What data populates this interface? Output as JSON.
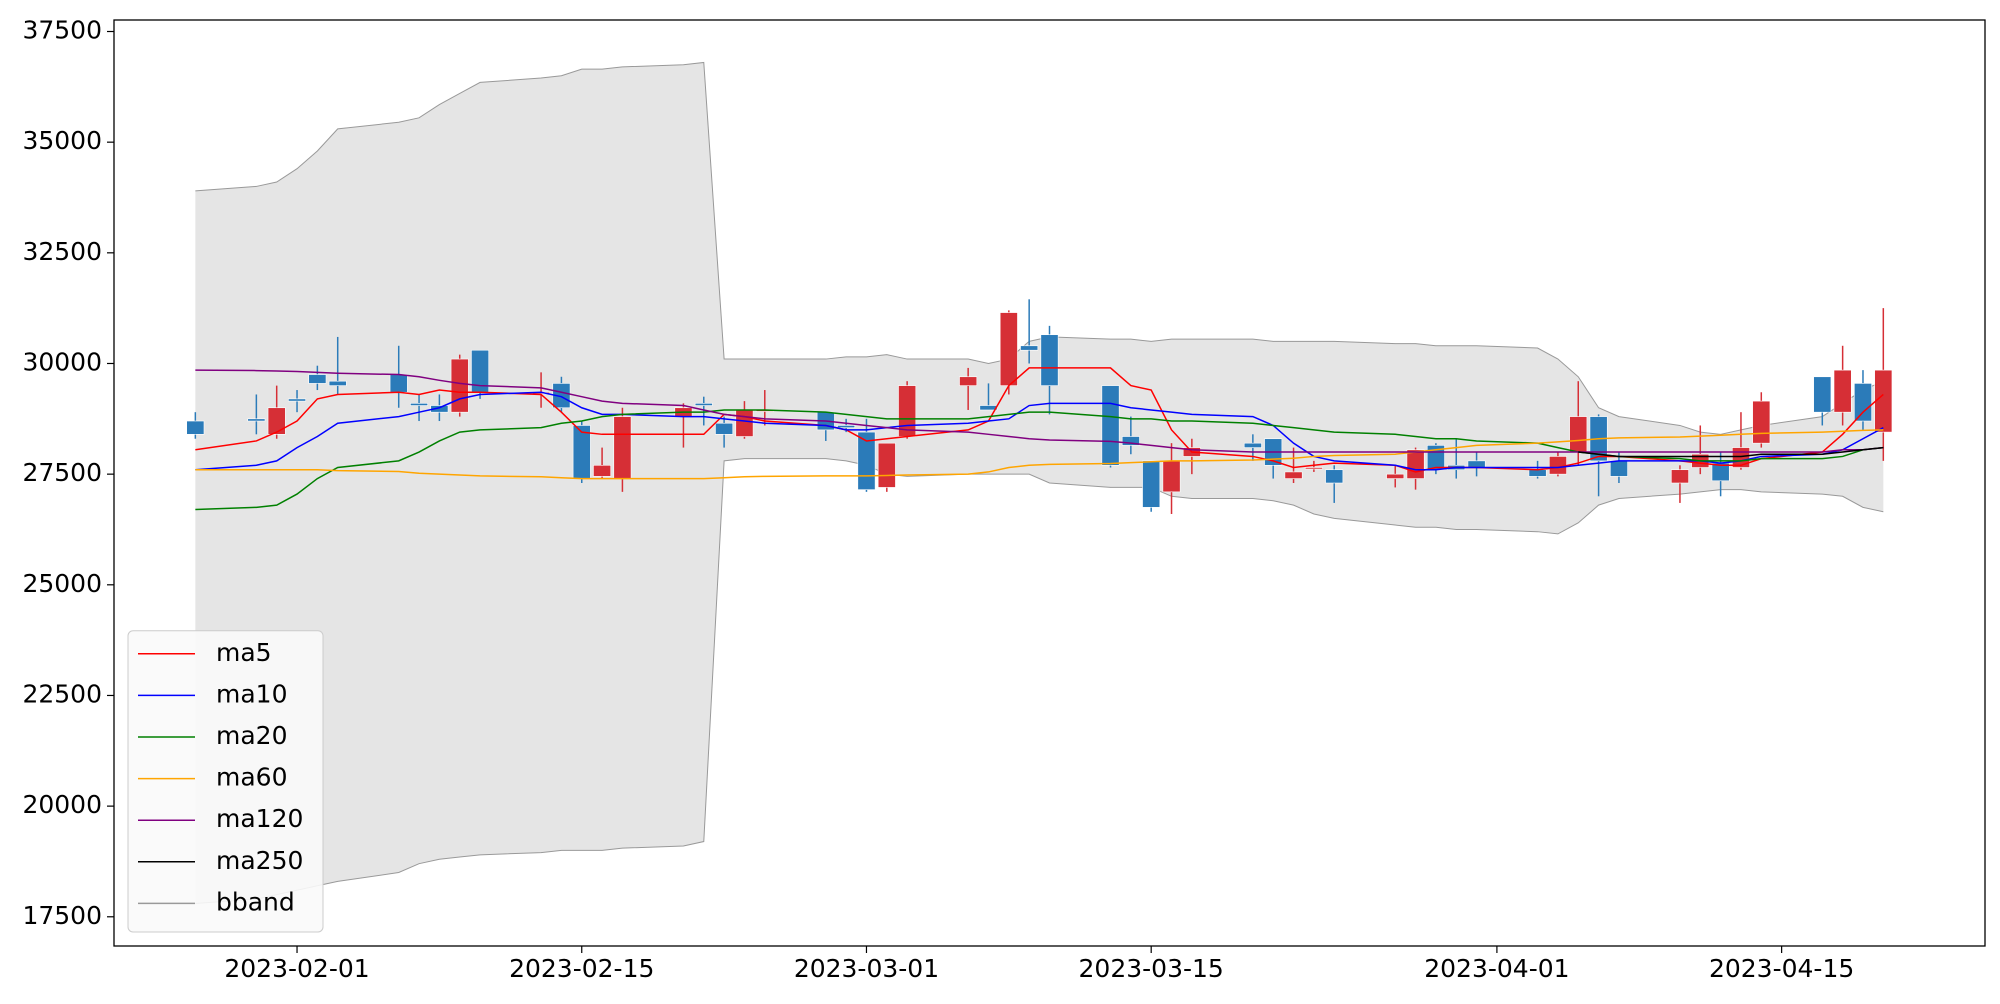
{
  "chart_data": {
    "type": "candlestick",
    "x": [
      "2023-01-27",
      "2023-01-30",
      "2023-01-31",
      "2023-02-01",
      "2023-02-02",
      "2023-02-03",
      "2023-02-06",
      "2023-02-07",
      "2023-02-08",
      "2023-02-09",
      "2023-02-10",
      "2023-02-13",
      "2023-02-14",
      "2023-02-15",
      "2023-02-16",
      "2023-02-17",
      "2023-02-20",
      "2023-02-21",
      "2023-02-22",
      "2023-02-23",
      "2023-02-24",
      "2023-02-27",
      "2023-02-28",
      "2023-03-01",
      "2023-03-02",
      "2023-03-03",
      "2023-03-06",
      "2023-03-07",
      "2023-03-08",
      "2023-03-09",
      "2023-03-10",
      "2023-03-13",
      "2023-03-14",
      "2023-03-15",
      "2023-03-16",
      "2023-03-17",
      "2023-03-20",
      "2023-03-21",
      "2023-03-22",
      "2023-03-23",
      "2023-03-24",
      "2023-03-27",
      "2023-03-28",
      "2023-03-29",
      "2023-03-30",
      "2023-03-31",
      "2023-04-03",
      "2023-04-04",
      "2023-04-05",
      "2023-04-06",
      "2023-04-07",
      "2023-04-10",
      "2023-04-11",
      "2023-04-12",
      "2023-04-13",
      "2023-04-14",
      "2023-04-17",
      "2023-04-18",
      "2023-04-19",
      "2023-04-20"
    ],
    "candles": {
      "open": [
        28700,
        28750,
        28400,
        29200,
        29750,
        29600,
        29750,
        29100,
        29050,
        28900,
        30300,
        29350,
        29550,
        28600,
        27450,
        27400,
        28800,
        29100,
        28650,
        28350,
        28950,
        28900,
        28600,
        28450,
        27200,
        28350,
        29500,
        29050,
        29500,
        30400,
        30650,
        29500,
        28350,
        27800,
        27100,
        27900,
        28200,
        28300,
        27400,
        27650,
        27600,
        27400,
        27400,
        28150,
        27700,
        27800,
        27600,
        27500,
        28000,
        28800,
        27800,
        27300,
        27650,
        27750,
        27650,
        28200,
        29700,
        28900,
        29550,
        28450
      ],
      "high": [
        28900,
        29300,
        29500,
        29400,
        29950,
        30600,
        30400,
        29300,
        29300,
        30200,
        30300,
        29800,
        29700,
        28700,
        28100,
        29000,
        29100,
        29250,
        28800,
        29150,
        29400,
        28900,
        28750,
        28750,
        28200,
        29600,
        29900,
        29550,
        31200,
        31450,
        30850,
        29500,
        28800,
        27800,
        28200,
        28300,
        28400,
        28300,
        28100,
        27800,
        27700,
        27700,
        28100,
        28200,
        28300,
        28000,
        27800,
        28000,
        29600,
        28850,
        28000,
        27700,
        28600,
        28000,
        28900,
        29350,
        29700,
        30400,
        29850,
        31250
      ],
      "low": [
        28300,
        28400,
        28300,
        28900,
        29400,
        29300,
        29000,
        28700,
        28700,
        28800,
        29200,
        29000,
        28900,
        27300,
        27400,
        27100,
        28100,
        28600,
        28100,
        28300,
        28600,
        28250,
        28450,
        27100,
        27100,
        28300,
        28950,
        28950,
        29300,
        30000,
        28850,
        27650,
        27950,
        26650,
        26600,
        27500,
        27800,
        27400,
        27300,
        27550,
        26850,
        27200,
        27150,
        27500,
        27400,
        27450,
        27400,
        27450,
        27700,
        27000,
        27300,
        26850,
        27500,
        27000,
        27600,
        28100,
        28600,
        28600,
        28500,
        27800
      ],
      "close": [
        28400,
        28700,
        29000,
        29150,
        29550,
        29500,
        29350,
        29050,
        28900,
        30100,
        29350,
        29350,
        29000,
        27400,
        27700,
        28800,
        29000,
        29050,
        28400,
        28950,
        28950,
        28500,
        28550,
        27150,
        28200,
        29500,
        29700,
        28950,
        31150,
        30300,
        29500,
        27700,
        28150,
        26750,
        27800,
        28100,
        28100,
        27700,
        27550,
        27650,
        27300,
        27500,
        28050,
        27600,
        27600,
        27650,
        27450,
        27900,
        28800,
        27800,
        27450,
        27600,
        27950,
        27350,
        28100,
        29150,
        28900,
        29850,
        28700,
        29850
      ]
    },
    "up_color": "#d62f36",
    "down_color": "#2b7bb9",
    "series": [
      {
        "name": "ma5",
        "color": "#ff0000",
        "values": [
          28050,
          28250,
          28450,
          28700,
          29200,
          29300,
          29350,
          29300,
          29400,
          29350,
          29350,
          29300,
          28900,
          28450,
          28400,
          28400,
          28400,
          28400,
          28850,
          28800,
          28700,
          28600,
          28500,
          28250,
          28300,
          28350,
          28500,
          28700,
          29500,
          29900,
          29900,
          29900,
          29500,
          29400,
          28500,
          28000,
          27900,
          27800,
          27650,
          27700,
          27750,
          27700,
          27550,
          27650,
          27650,
          27650,
          27600,
          27650,
          27750,
          27900,
          27900,
          27800,
          27750,
          27700,
          27700,
          27850,
          28000,
          28400,
          28900,
          29300
        ]
      },
      {
        "name": "ma10",
        "color": "#0000ff",
        "values": [
          27600,
          27700,
          27800,
          28100,
          28350,
          28650,
          28800,
          28900,
          29000,
          29200,
          29300,
          29350,
          29250,
          29000,
          28850,
          28850,
          28800,
          28800,
          28750,
          28700,
          28650,
          28600,
          28500,
          28500,
          28550,
          28600,
          28650,
          28700,
          28750,
          29050,
          29100,
          29100,
          29000,
          28950,
          28900,
          28850,
          28800,
          28600,
          28200,
          27900,
          27800,
          27700,
          27600,
          27600,
          27650,
          27650,
          27650,
          27650,
          27700,
          27750,
          27800,
          27800,
          27800,
          27750,
          27800,
          27900,
          27950,
          28050,
          28300,
          28550
        ]
      },
      {
        "name": "ma20",
        "color": "#008000",
        "values": [
          26700,
          26750,
          26800,
          27050,
          27400,
          27650,
          27800,
          28000,
          28250,
          28450,
          28500,
          28550,
          28650,
          28700,
          28800,
          28850,
          28900,
          28900,
          28950,
          28950,
          28950,
          28900,
          28850,
          28800,
          28750,
          28750,
          28750,
          28800,
          28850,
          28900,
          28900,
          28800,
          28750,
          28750,
          28700,
          28700,
          28650,
          28600,
          28550,
          28500,
          28450,
          28400,
          28350,
          28300,
          28300,
          28250,
          28200,
          28100,
          28000,
          27950,
          27900,
          27850,
          27800,
          27800,
          27800,
          27850,
          27850,
          27900,
          28050,
          28100
        ]
      },
      {
        "name": "ma60",
        "color": "#ffa500",
        "values": [
          27600,
          27600,
          27600,
          27600,
          27600,
          27580,
          27560,
          27520,
          27500,
          27480,
          27460,
          27440,
          27420,
          27400,
          27400,
          27400,
          27400,
          27400,
          27420,
          27440,
          27450,
          27460,
          27460,
          27460,
          27470,
          27480,
          27500,
          27550,
          27650,
          27700,
          27720,
          27740,
          27760,
          27780,
          27800,
          27800,
          27820,
          27840,
          27860,
          27900,
          27920,
          27950,
          28000,
          28050,
          28100,
          28150,
          28200,
          28230,
          28260,
          28300,
          28320,
          28340,
          28360,
          28380,
          28400,
          28420,
          28450,
          28470,
          28490,
          28500
        ]
      },
      {
        "name": "ma120",
        "color": "#800080",
        "values": [
          29850,
          29840,
          29830,
          29820,
          29800,
          29780,
          29750,
          29700,
          29620,
          29550,
          29500,
          29450,
          29350,
          29250,
          29150,
          29100,
          29050,
          28950,
          28850,
          28800,
          28750,
          28700,
          28650,
          28600,
          28550,
          28500,
          28450,
          28400,
          28350,
          28300,
          28270,
          28240,
          28200,
          28150,
          28100,
          28050,
          28000,
          28000,
          28000,
          28000,
          28000,
          28000,
          28000,
          28000,
          28000,
          28000,
          28000,
          28000,
          28000,
          28000,
          28000,
          28000,
          28000,
          28000,
          28000,
          28000,
          28000,
          28050,
          28050,
          28100
        ]
      },
      {
        "name": "ma250",
        "color": "#000000",
        "values": [
          null,
          null,
          null,
          null,
          null,
          null,
          null,
          null,
          null,
          null,
          null,
          null,
          null,
          null,
          null,
          null,
          null,
          null,
          null,
          null,
          null,
          null,
          null,
          null,
          null,
          null,
          null,
          null,
          null,
          null,
          null,
          null,
          null,
          null,
          null,
          null,
          null,
          null,
          null,
          null,
          null,
          null,
          null,
          null,
          null,
          null,
          null,
          null,
          28000,
          27950,
          27900,
          27900,
          27900,
          27900,
          27900,
          27950,
          27950,
          28000,
          28050,
          28100
        ]
      }
    ],
    "bands": {
      "name": "bband",
      "color": "#999999",
      "fill": "#e5e5e5",
      "upper": [
        33900,
        34000,
        34100,
        34400,
        34800,
        35300,
        35450,
        35550,
        35850,
        36100,
        36350,
        36450,
        36500,
        36650,
        36650,
        36700,
        36750,
        36800,
        30100,
        30100,
        30100,
        30100,
        30150,
        30150,
        30200,
        30100,
        30100,
        30000,
        30100,
        30500,
        30600,
        30550,
        30550,
        30500,
        30550,
        30550,
        30550,
        30500,
        30500,
        30500,
        30500,
        30450,
        30450,
        30400,
        30400,
        30400,
        30350,
        30100,
        29700,
        29000,
        28800,
        28600,
        28450,
        28400,
        28500,
        28600,
        28800,
        29100,
        29400,
        29600
      ],
      "lower": [
        17800,
        17900,
        18000,
        18100,
        18200,
        18300,
        18500,
        18700,
        18800,
        18850,
        18900,
        18950,
        19000,
        19000,
        19000,
        19050,
        19100,
        19200,
        27800,
        27850,
        27850,
        27850,
        27800,
        27700,
        27500,
        27450,
        27500,
        27500,
        27500,
        27500,
        27300,
        27200,
        27200,
        27200,
        27000,
        26950,
        26950,
        26900,
        26800,
        26600,
        26500,
        26350,
        26300,
        26300,
        26250,
        26250,
        26200,
        26150,
        26400,
        26800,
        26950,
        27050,
        27100,
        27150,
        27150,
        27100,
        27050,
        27000,
        26750,
        26650
      ]
    },
    "xlim": [
      "2023-01-23",
      "2023-04-25"
    ],
    "xticks": [
      "2023-02-01",
      "2023-02-15",
      "2023-03-01",
      "2023-03-15",
      "2023-04-01",
      "2023-04-15"
    ],
    "ylim": [
      16840,
      37760
    ],
    "yticks": [
      17500,
      20000,
      22500,
      25000,
      27500,
      30000,
      32500,
      35000,
      37500
    ],
    "legend": "lower left"
  }
}
